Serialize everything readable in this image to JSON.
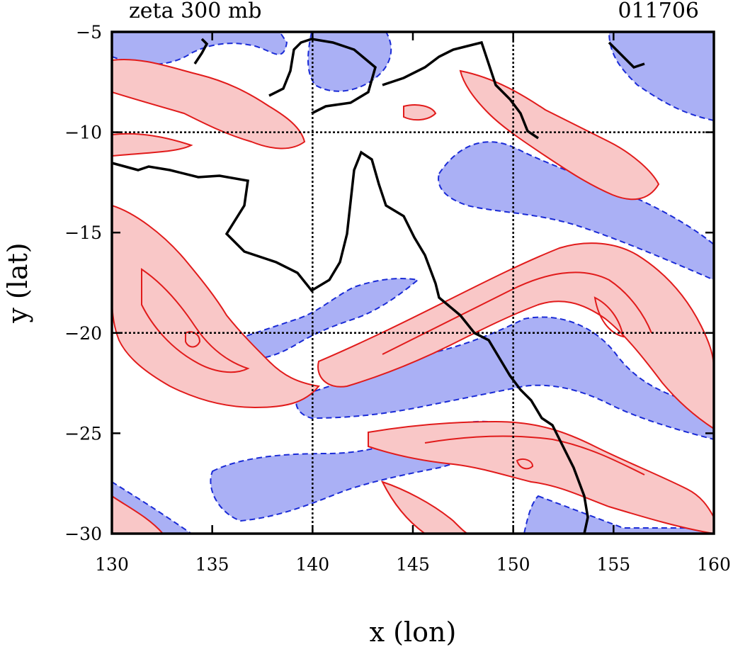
{
  "chart_data": {
    "type": "contour",
    "title": "zeta 300 mb",
    "date_label": "011706",
    "xlabel": "x (lon)",
    "ylabel": "y (lat)",
    "xlim": [
      130,
      160
    ],
    "ylim": [
      -30,
      -5
    ],
    "xticks": [
      130,
      135,
      140,
      145,
      150,
      155,
      160
    ],
    "yticks": [
      -5,
      -10,
      -15,
      -20,
      -25,
      -30
    ],
    "grid": {
      "x": [
        140,
        150
      ],
      "y": [
        -10,
        -20
      ]
    },
    "colors": {
      "positive_fill": "#f9c7c7",
      "positive_line": "#e11b1b",
      "negative_fill": "#aab0f5",
      "negative_line": "#1a2bd6",
      "coastline": "#000000"
    }
  }
}
